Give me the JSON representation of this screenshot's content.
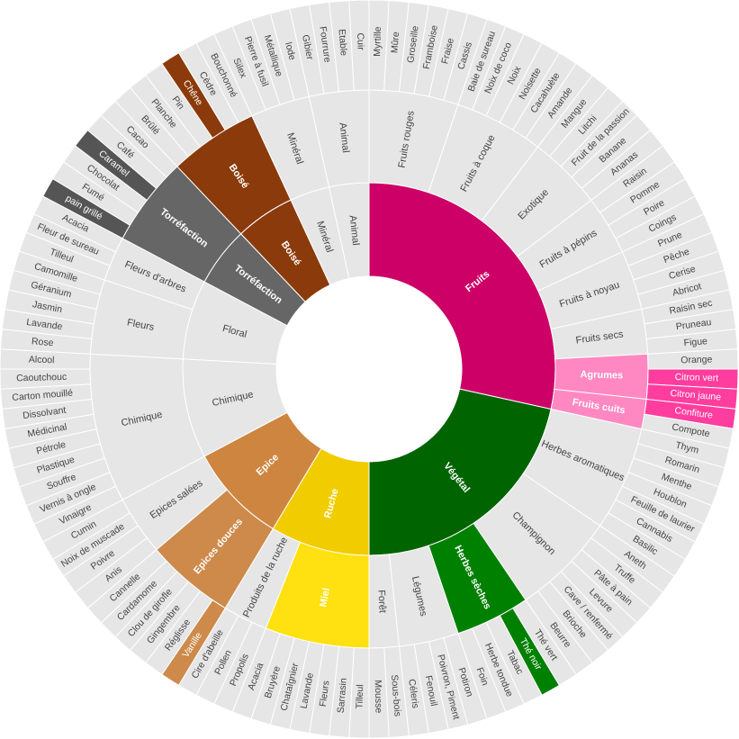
{
  "chart_data": {
    "type": "sunburst",
    "colors": {
      "Fruits": "#cc0066",
      "Végétal": "#006400",
      "Ruche": "#f0cc00",
      "Epice": "#cd853f",
      "Floral": "#e6e6e6",
      "Chimique": "#e6e6e6",
      "Torréfaction": "#666666",
      "Boisé": "#8b3a0b",
      "Minéral": "#e6e6e6",
      "Animal": "#e6e6e6",
      "neutral": "#e6e6e6",
      "Agrumes": "#ff88c2",
      "Herbes sèches": "#008000",
      "Miel": "#ffe010",
      "Epices douces": "#cd8a4a"
    },
    "tree": [
      {
        "name": "Fruits",
        "children": [
          {
            "name": "Fruits rouges",
            "children": [
              "Myrtille",
              "Mûre",
              "Groseille",
              "Framboise",
              "Fraise",
              "Cassis"
            ]
          },
          {
            "name": "Fruits à coque",
            "children": [
              "Baie de sureau",
              "Noix de coco",
              "Noix",
              "Noisette",
              "Cacahuète",
              "Amande"
            ]
          },
          {
            "name": "Exotique",
            "children": [
              "Mangue",
              "Litchi",
              "Fruit de la passion",
              "Banane",
              "Ananas"
            ]
          },
          {
            "name": "Fruits à pépins",
            "children": [
              "Raisin",
              "Pomme",
              "Poire",
              "Coings"
            ]
          },
          {
            "name": "Fruits à noyau",
            "children": [
              "Prune",
              "Pêche",
              "Cerise",
              "Abricot"
            ]
          },
          {
            "name": "Fruits secs",
            "children": [
              "Raisin sec",
              "Pruneau",
              "Figue"
            ]
          },
          {
            "name": "Agrumes",
            "children": [
              "Orange",
              "Citron vert",
              "Citron jaune"
            ]
          },
          {
            "name": "Fruits cuits",
            "children": [
              "Confiture",
              "Compote"
            ]
          }
        ]
      },
      {
        "name": "Végétal",
        "children": [
          {
            "name": "Herbes aromatiques",
            "children": [
              "Thym",
              "Romarin",
              "Menthe",
              "Houblon",
              "Feuille de laurier",
              "Cannabis",
              "Basilic"
            ]
          },
          {
            "name": "Champignon",
            "children": [
              "Aneth",
              "Truffe",
              "Pâte à pain",
              "Levure",
              "Cave / renfermé",
              "Brioche",
              "Beurre"
            ]
          },
          {
            "name": "Herbes sèches",
            "children": [
              "Thé vert",
              "Thé noir",
              "Tabac",
              "Herbe tondue",
              "Foin"
            ]
          },
          {
            "name": "Légumes",
            "children": [
              "Potiron",
              "Poivron, Piment",
              "Fenouil",
              "Céleris"
            ]
          },
          {
            "name": "Forêt",
            "children": [
              "Sous-bois",
              "Mousse"
            ]
          }
        ]
      },
      {
        "name": "Ruche",
        "children": [
          {
            "name": "Miel",
            "children": [
              "Tilleul",
              "Sarrasin",
              "Fleurs",
              "Lavande",
              "Chataîgnier",
              "Bruyère",
              "Acacia"
            ]
          },
          {
            "name": "Produits de la ruche",
            "children": [
              "Propolis",
              "Pollen",
              "Cire d'abeille"
            ]
          }
        ]
      },
      {
        "name": "Epice",
        "children": [
          {
            "name": "Epices douces",
            "children": [
              "Vanille",
              "Réglisse",
              "Gingembre",
              "Clou de girofle",
              "Cardamome",
              "Cannelle"
            ]
          },
          {
            "name": "Epices salées",
            "children": [
              "Anis",
              "Poivre",
              "Noix de muscade",
              "Cumin"
            ]
          }
        ]
      },
      {
        "name": "Chimique",
        "children": [
          {
            "name": "Chimique",
            "children": [
              "Vinaigre",
              "Vernis à ongle",
              "Souffre",
              "Plastique",
              "Pétrole",
              "Médicinal",
              "Dissolvant",
              "Carton mouillé",
              "Caoutchouc",
              "Alcool"
            ]
          }
        ]
      },
      {
        "name": "Floral",
        "children": [
          {
            "name": "Fleurs",
            "children": [
              "Rose",
              "Lavande",
              "Jasmin",
              "Géranium",
              "Camomille"
            ]
          },
          {
            "name": "Fleurs d'arbres",
            "children": [
              "Tilleul",
              "Fleur de sureau",
              "Acacia"
            ]
          }
        ]
      },
      {
        "name": "Torréfaction",
        "children": [
          {
            "name": "Torréfaction",
            "children": [
              "pain grillé",
              "Fumé",
              "Chocolat",
              "Caramel",
              "Café",
              "Cacao"
            ]
          }
        ]
      },
      {
        "name": "Boisé",
        "children": [
          {
            "name": "Boisé",
            "children": [
              "Brûlé",
              "Planche",
              "Pin",
              "Chêne",
              "Cèdre",
              "Bouchonné"
            ]
          }
        ]
      },
      {
        "name": "Minéral",
        "children": [
          {
            "name": "Minéral",
            "children": [
              "Silex",
              "Pierre à fusil",
              "Métallique",
              "Iode"
            ]
          }
        ]
      },
      {
        "name": "Animal",
        "children": [
          {
            "name": "Animal",
            "children": [
              "Gibier",
              "Fourrure",
              "Etable",
              "Cuir"
            ]
          }
        ]
      }
    ],
    "highlighted": {
      "Agrumes": "#ff88c2",
      "Citron vert": "#ff3d9e",
      "Citron jaune": "#ff3d9e",
      "Confiture": "#ff3d9e",
      "Fruits cuits": "#ff88c2",
      "Herbes sèches": "#008000",
      "Thé noir": "#008000",
      "Miel": "#ffe010",
      "Epices douces": "#cd8a4a",
      "Vanille": "#cd8a4a",
      "Torréfaction": "#666666",
      "pain grillé": "#555555",
      "Caramel": "#555555",
      "Boisé": "#8b3a0b",
      "Chêne": "#8b3a0b"
    }
  }
}
